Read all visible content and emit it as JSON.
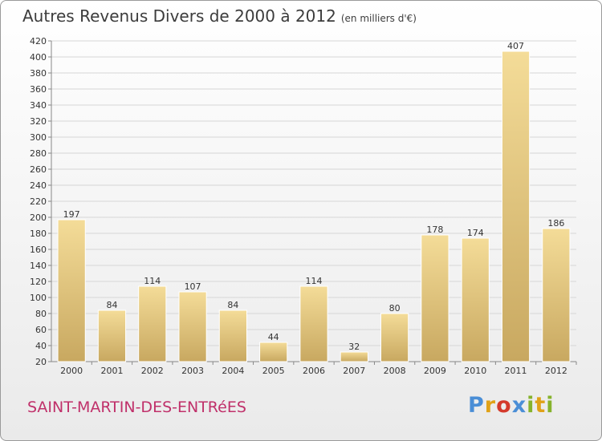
{
  "header": {
    "title": "Autres Revenus Divers de 2000 à 2012",
    "subtitle": "(en milliers d'€)"
  },
  "footer": {
    "commune": "SAINT-MARTIN-DES-ENTRéES",
    "brand": [
      "P",
      "r",
      "o",
      "x",
      "i",
      "t",
      "i"
    ]
  },
  "colors": {
    "bar_light": "#f4dc98",
    "bar_dark": "#c8a860",
    "commune": "#c0306a",
    "grid": "#d6d6d6"
  },
  "chart_data": {
    "type": "bar",
    "categories": [
      "2000",
      "2001",
      "2002",
      "2003",
      "2004",
      "2005",
      "2006",
      "2007",
      "2008",
      "2009",
      "2010",
      "2011",
      "2012"
    ],
    "values": [
      197,
      84,
      114,
      107,
      84,
      44,
      114,
      32,
      80,
      178,
      174,
      407,
      186
    ],
    "title": "Autres Revenus Divers de 2000 à 2012",
    "ylim": [
      20,
      420
    ],
    "yticks": [
      20,
      40,
      60,
      80,
      100,
      120,
      140,
      160,
      180,
      200,
      220,
      240,
      260,
      280,
      300,
      320,
      340,
      360,
      380,
      400,
      420
    ],
    "grid": true,
    "data_labels": true
  }
}
